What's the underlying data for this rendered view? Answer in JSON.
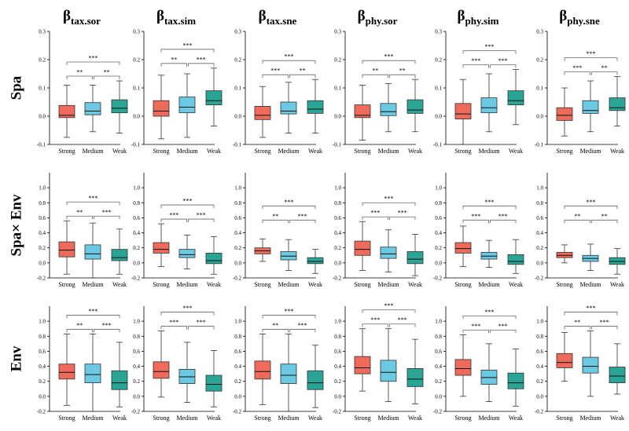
{
  "colors": {
    "Strong": "#ee6a5a",
    "Medium": "#6cc9e2",
    "Weak": "#2aa595"
  },
  "chart_data": {
    "type": "box",
    "columns": [
      {
        "base": "β",
        "sub": "tax.sor"
      },
      {
        "base": "β",
        "sub": "tax.sim"
      },
      {
        "base": "β",
        "sub": "tax.sne"
      },
      {
        "base": "β",
        "sub": "phy.sor"
      },
      {
        "base": "β",
        "sub": "phy.sim"
      },
      {
        "base": "β",
        "sub": "phy.sne"
      }
    ],
    "rows": [
      {
        "label": "Spa",
        "ylim": [
          -0.1,
          0.3
        ],
        "yticks": [
          "-0.1",
          "0.0",
          "0.1",
          "0.2",
          "0.3"
        ]
      },
      {
        "label": "Spa× Env",
        "ylim": [
          -0.2,
          1.2
        ],
        "yticks": [
          "-0.2",
          "0.0",
          "0.2",
          "0.4",
          "0.6",
          "0.8",
          "1.0"
        ]
      },
      {
        "label": "Env",
        "ylim": [
          -0.2,
          1.2
        ],
        "yticks": [
          "-0.2",
          "0.0",
          "0.2",
          "0.4",
          "0.6",
          "0.8",
          "1.0"
        ]
      }
    ],
    "categories": [
      "Strong",
      "Medium",
      "Weak"
    ],
    "panels": [
      {
        "row": 0,
        "col": 0,
        "boxes": [
          [
            -0.075,
            -0.005,
            0.003,
            0.038,
            0.11
          ],
          [
            -0.055,
            0.005,
            0.018,
            0.048,
            0.11
          ],
          [
            -0.06,
            0.012,
            0.028,
            0.058,
            0.125
          ]
        ],
        "sig": [
          "**",
          "**",
          "***"
        ]
      },
      {
        "row": 0,
        "col": 1,
        "boxes": [
          [
            -0.08,
            0.0,
            0.018,
            0.055,
            0.145
          ],
          [
            -0.075,
            0.012,
            0.032,
            0.068,
            0.15
          ],
          [
            -0.035,
            0.04,
            0.055,
            0.09,
            0.17
          ]
        ],
        "sig": [
          "**",
          "***",
          "***"
        ]
      },
      {
        "row": 0,
        "col": 2,
        "boxes": [
          [
            -0.075,
            -0.012,
            0.003,
            0.035,
            0.105
          ],
          [
            -0.06,
            0.008,
            0.018,
            0.05,
            0.12
          ],
          [
            -0.06,
            0.01,
            0.025,
            0.055,
            0.13
          ]
        ],
        "sig": [
          "***",
          "**",
          "***"
        ]
      },
      {
        "row": 0,
        "col": 3,
        "boxes": [
          [
            -0.085,
            -0.005,
            0.003,
            0.04,
            0.11
          ],
          [
            -0.055,
            0.002,
            0.016,
            0.045,
            0.115
          ],
          [
            -0.055,
            0.01,
            0.022,
            0.058,
            0.13
          ]
        ],
        "sig": [
          "**",
          "**",
          "***"
        ]
      },
      {
        "row": 0,
        "col": 4,
        "boxes": [
          [
            -0.1,
            -0.01,
            0.008,
            0.045,
            0.13
          ],
          [
            -0.055,
            0.012,
            0.03,
            0.065,
            0.15
          ],
          [
            -0.03,
            0.04,
            0.055,
            0.09,
            0.165
          ]
        ],
        "sig": [
          "***",
          "***",
          "***"
        ]
      },
      {
        "row": 0,
        "col": 5,
        "boxes": [
          [
            -0.07,
            -0.015,
            0.003,
            0.03,
            0.1
          ],
          [
            -0.055,
            0.01,
            0.02,
            0.055,
            0.125
          ],
          [
            -0.035,
            0.02,
            0.03,
            0.065,
            0.14
          ]
        ],
        "sig": [
          "***",
          "**",
          "***"
        ]
      },
      {
        "row": 1,
        "col": 0,
        "boxes": [
          [
            -0.15,
            0.08,
            0.17,
            0.28,
            0.56
          ],
          [
            -0.2,
            0.05,
            0.12,
            0.24,
            0.53
          ],
          [
            -0.15,
            0.03,
            0.07,
            0.18,
            0.45
          ]
        ],
        "sig": [
          "**",
          "***",
          "***"
        ]
      },
      {
        "row": 1,
        "col": 1,
        "boxes": [
          [
            -0.05,
            0.13,
            0.18,
            0.27,
            0.52
          ],
          [
            -0.08,
            0.07,
            0.11,
            0.18,
            0.37
          ],
          [
            -0.15,
            -0.01,
            0.03,
            0.13,
            0.35
          ]
        ],
        "sig": [
          "***",
          "***",
          "***"
        ]
      },
      {
        "row": 1,
        "col": 2,
        "boxes": [
          [
            0.02,
            0.12,
            0.16,
            0.2,
            0.32
          ],
          [
            -0.1,
            0.04,
            0.09,
            0.15,
            0.31
          ],
          [
            -0.14,
            -0.01,
            0.02,
            0.07,
            0.18
          ]
        ],
        "sig": [
          "**",
          "***",
          "***"
        ]
      },
      {
        "row": 1,
        "col": 3,
        "boxes": [
          [
            -0.1,
            0.1,
            0.18,
            0.29,
            0.55
          ],
          [
            -0.12,
            0.06,
            0.12,
            0.21,
            0.44
          ],
          [
            -0.17,
            -0.01,
            0.05,
            0.15,
            0.38
          ]
        ],
        "sig": [
          "***",
          "***",
          "***"
        ]
      },
      {
        "row": 1,
        "col": 4,
        "boxes": [
          [
            -0.05,
            0.13,
            0.19,
            0.27,
            0.49
          ],
          [
            -0.06,
            0.05,
            0.09,
            0.14,
            0.3
          ],
          [
            -0.14,
            -0.02,
            0.02,
            0.11,
            0.31
          ]
        ],
        "sig": [
          "***",
          "***",
          "***"
        ]
      },
      {
        "row": 1,
        "col": 5,
        "boxes": [
          [
            0.0,
            0.07,
            0.1,
            0.14,
            0.24
          ],
          [
            -0.1,
            0.02,
            0.06,
            0.1,
            0.25
          ],
          [
            -0.15,
            -0.02,
            0.02,
            0.07,
            0.19
          ]
        ],
        "sig": [
          "**",
          "**",
          "***"
        ]
      },
      {
        "row": 2,
        "col": 0,
        "boxes": [
          [
            -0.12,
            0.23,
            0.32,
            0.43,
            0.83
          ],
          [
            -0.2,
            0.18,
            0.29,
            0.43,
            0.83
          ],
          [
            -0.14,
            0.09,
            0.18,
            0.34,
            0.72
          ]
        ],
        "sig": [
          "**",
          "***",
          "***"
        ]
      },
      {
        "row": 2,
        "col": 1,
        "boxes": [
          [
            -0.01,
            0.24,
            0.33,
            0.46,
            0.87
          ],
          [
            -0.08,
            0.17,
            0.26,
            0.36,
            0.72
          ],
          [
            -0.14,
            0.07,
            0.16,
            0.28,
            0.61
          ]
        ],
        "sig": [
          "***",
          "***",
          "***"
        ]
      },
      {
        "row": 2,
        "col": 2,
        "boxes": [
          [
            -0.11,
            0.23,
            0.33,
            0.47,
            0.83
          ],
          [
            -0.2,
            0.17,
            0.28,
            0.43,
            0.83
          ],
          [
            -0.15,
            0.09,
            0.18,
            0.34,
            0.68
          ]
        ],
        "sig": [
          "**",
          "***",
          "***"
        ]
      },
      {
        "row": 2,
        "col": 3,
        "boxes": [
          [
            0.07,
            0.3,
            0.38,
            0.53,
            0.9
          ],
          [
            -0.07,
            0.2,
            0.32,
            0.48,
            0.9
          ],
          [
            -0.1,
            0.13,
            0.23,
            0.37,
            0.76
          ]
        ],
        "sig": [
          "***",
          "***",
          "***"
        ]
      },
      {
        "row": 2,
        "col": 4,
        "boxes": [
          [
            0.0,
            0.28,
            0.37,
            0.49,
            0.82
          ],
          [
            -0.07,
            0.16,
            0.25,
            0.35,
            0.7
          ],
          [
            -0.13,
            0.1,
            0.18,
            0.31,
            0.63
          ]
        ],
        "sig": [
          "***",
          "***",
          "***"
        ]
      },
      {
        "row": 2,
        "col": 5,
        "boxes": [
          [
            0.2,
            0.38,
            0.45,
            0.57,
            0.85
          ],
          [
            0.0,
            0.31,
            0.4,
            0.52,
            0.87
          ],
          [
            0.03,
            0.18,
            0.27,
            0.39,
            0.7
          ]
        ],
        "sig": [
          "**",
          "***",
          "***"
        ]
      }
    ]
  }
}
